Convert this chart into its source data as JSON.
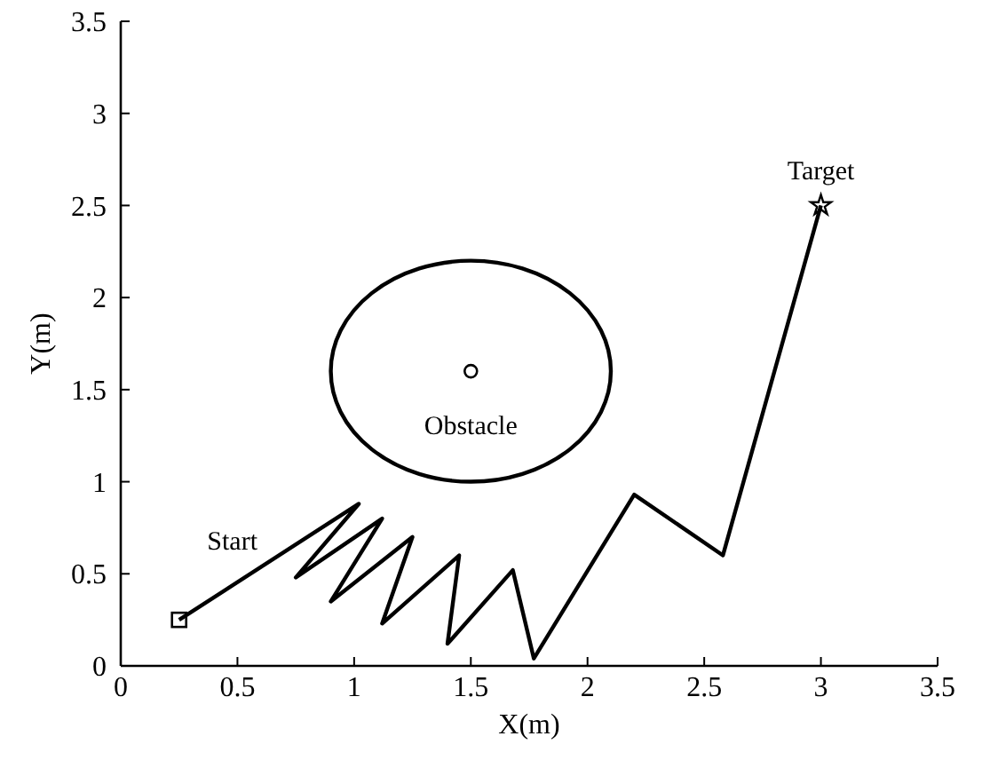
{
  "chart_data": {
    "type": "line",
    "xlabel": "X(m)",
    "ylabel": "Y(m)",
    "xlim": [
      0,
      3.5
    ],
    "ylim": [
      0,
      3.5
    ],
    "xticks": [
      0,
      0.5,
      1,
      1.5,
      2,
      2.5,
      3,
      3.5
    ],
    "yticks": [
      0,
      0.5,
      1,
      1.5,
      2,
      2.5,
      3,
      3.5
    ],
    "grid": false,
    "series": [
      {
        "color": "#000000",
        "marker": "none",
        "x": [
          0.25,
          1.02,
          0.75,
          1.12,
          0.9,
          1.25,
          1.12,
          1.45,
          1.4,
          1.68,
          1.77,
          2.2,
          2.58,
          3.0
        ],
        "values": [
          0.25,
          0.88,
          0.48,
          0.8,
          0.35,
          0.7,
          0.23,
          0.6,
          0.12,
          0.52,
          0.04,
          0.93,
          0.6,
          2.5
        ]
      },
      {
        "type": "scatter",
        "color": "#000000",
        "marker": "circle",
        "x": [
          1.5
        ],
        "values": [
          1.6
        ]
      },
      {
        "type": "scatter",
        "color": "#000000",
        "marker": "square",
        "x": [
          0.25
        ],
        "values": [
          0.25
        ]
      },
      {
        "type": "scatter",
        "color": "#000000",
        "marker": "star",
        "x": [
          3.0
        ],
        "values": [
          2.5
        ]
      }
    ],
    "annotations": [
      {
        "text": "Start",
        "x": 0.25,
        "y": 0.25
      },
      {
        "text": "Obstacle",
        "x": 1.5,
        "y": 1.6
      },
      {
        "text": "Target",
        "x": 3.0,
        "y": 2.5
      }
    ]
  }
}
